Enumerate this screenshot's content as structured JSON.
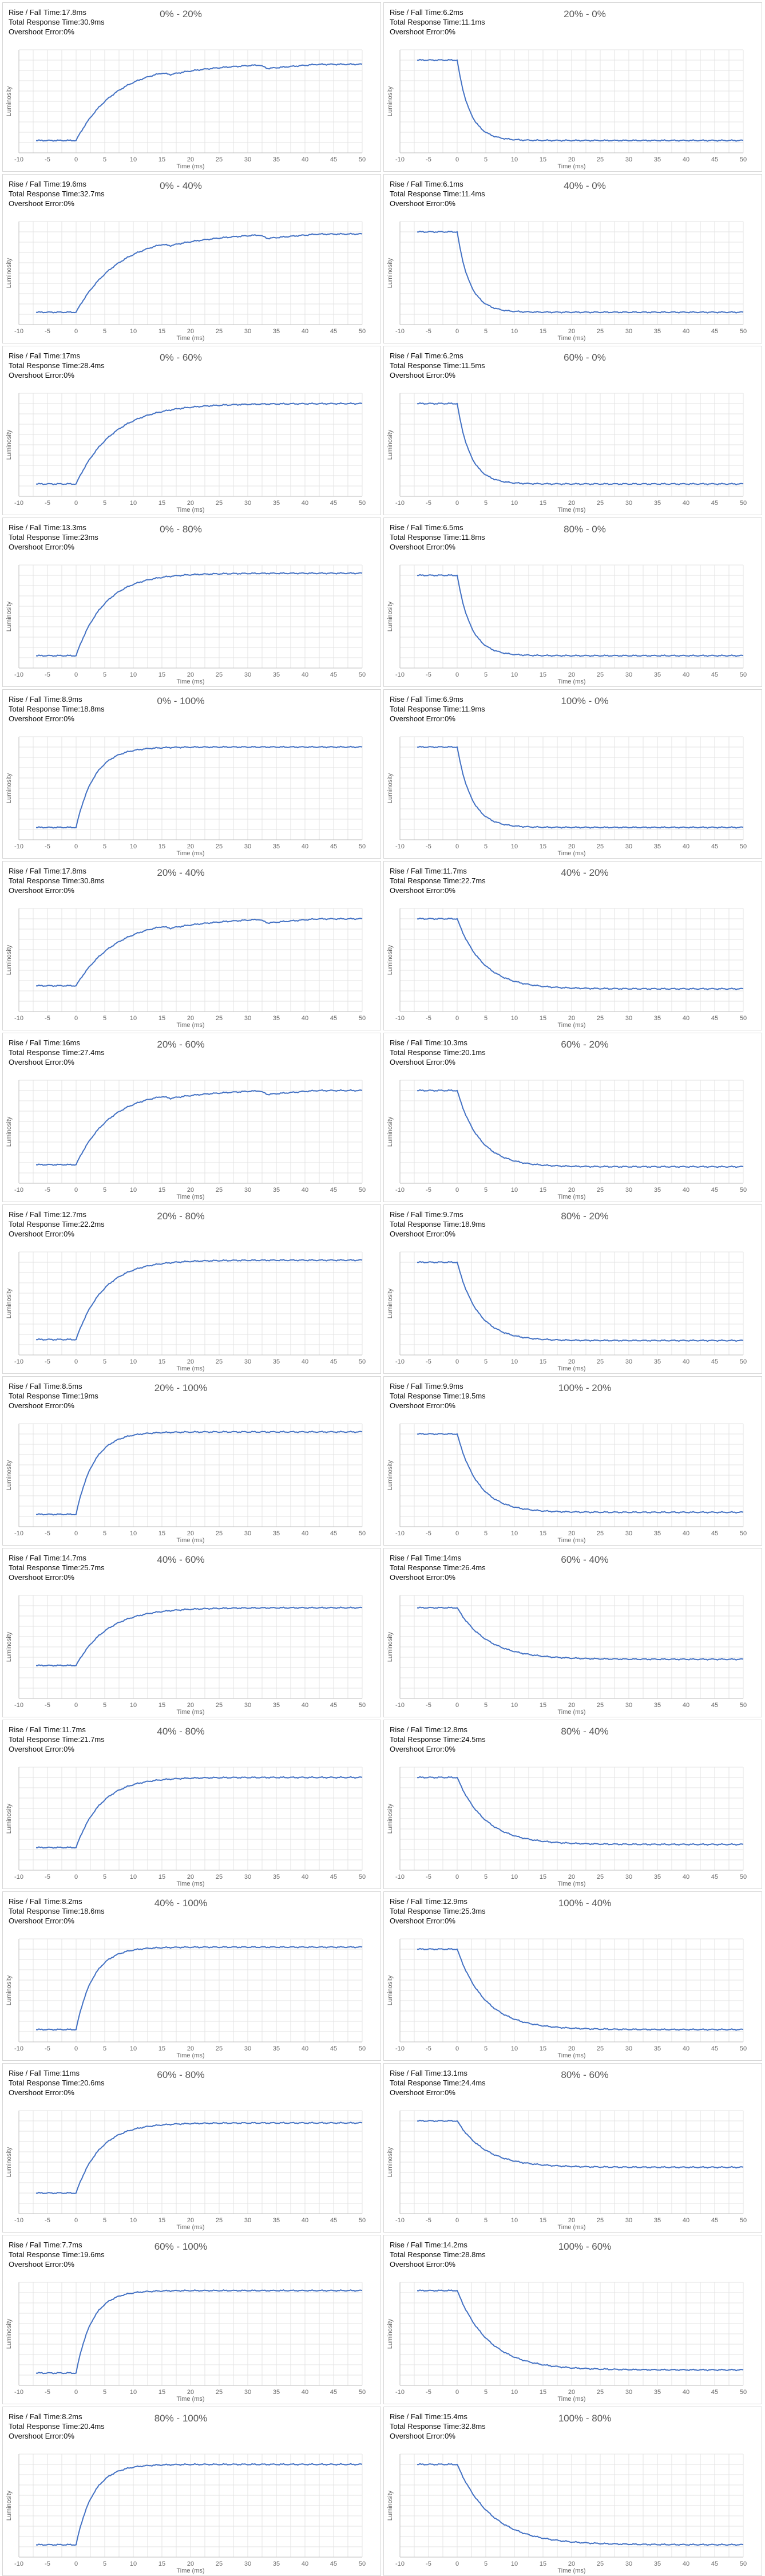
{
  "labels": {
    "rise": "Rise / Fall Time:",
    "total": "Total Response Time:",
    "overshoot": "Overshoot Error:",
    "xaxis": "Time (ms)",
    "yaxis": "Luminosity"
  },
  "colors": {
    "line": "#4472c4",
    "grid": "#e3e3e3",
    "axis": "#bdbdbd"
  },
  "chart_data": [
    {
      "type": "line",
      "title": "0% - 20%",
      "rise": "17.8ms",
      "total": "30.9ms",
      "overshoot": "0%",
      "dir": "rise",
      "lo": 0.12,
      "hi": 0.86,
      "tau": 7.0,
      "bump": true,
      "xlim": [
        -10,
        50
      ],
      "xticks": [
        -10,
        -5,
        0,
        5,
        10,
        15,
        20,
        25,
        30,
        35,
        40,
        45,
        50
      ]
    },
    {
      "type": "line",
      "title": "20% - 0%",
      "rise": "6.2ms",
      "total": "11.1ms",
      "overshoot": "0%",
      "dir": "fall",
      "lo": 0.12,
      "hi": 0.9,
      "tau": 2.2,
      "bump": false,
      "xlim": [
        -10,
        50
      ],
      "xticks": [
        -10,
        -5,
        0,
        5,
        10,
        15,
        20,
        25,
        30,
        35,
        40,
        45,
        50
      ]
    },
    {
      "type": "line",
      "title": "0% - 40%",
      "rise": "19.6ms",
      "total": "32.7ms",
      "overshoot": "0%",
      "dir": "rise",
      "lo": 0.12,
      "hi": 0.88,
      "tau": 7.5,
      "bump": true,
      "xlim": [
        -10,
        50
      ],
      "xticks": [
        -10,
        -5,
        0,
        5,
        10,
        15,
        20,
        25,
        30,
        35,
        40,
        45,
        50
      ]
    },
    {
      "type": "line",
      "title": "40% - 0%",
      "rise": "6.1ms",
      "total": "11.4ms",
      "overshoot": "0%",
      "dir": "fall",
      "lo": 0.12,
      "hi": 0.9,
      "tau": 2.2,
      "bump": false,
      "xlim": [
        -10,
        50
      ],
      "xticks": [
        -10,
        -5,
        0,
        5,
        10,
        15,
        20,
        25,
        30,
        35,
        40,
        45,
        50
      ]
    },
    {
      "type": "line",
      "title": "0% - 60%",
      "rise": "17ms",
      "total": "28.4ms",
      "overshoot": "0%",
      "dir": "rise",
      "lo": 0.12,
      "hi": 0.9,
      "tau": 6.5,
      "bump": false,
      "xlim": [
        -10,
        50
      ],
      "xticks": [
        -10,
        -5,
        0,
        5,
        10,
        15,
        20,
        25,
        30,
        35,
        40,
        45,
        50
      ]
    },
    {
      "type": "line",
      "title": "60% - 0%",
      "rise": "6.2ms",
      "total": "11.5ms",
      "overshoot": "0%",
      "dir": "fall",
      "lo": 0.12,
      "hi": 0.9,
      "tau": 2.3,
      "bump": false,
      "xlim": [
        -10,
        50
      ],
      "xticks": [
        -10,
        -5,
        0,
        5,
        10,
        15,
        20,
        25,
        30,
        35,
        40,
        45,
        50
      ]
    },
    {
      "type": "line",
      "title": "0% - 80%",
      "rise": "13.3ms",
      "total": "23ms",
      "overshoot": "0%",
      "dir": "rise",
      "lo": 0.12,
      "hi": 0.92,
      "tau": 5.0,
      "bump": false,
      "xlim": [
        -10,
        50
      ],
      "xticks": [
        -10,
        -5,
        0,
        5,
        10,
        15,
        20,
        25,
        30,
        35,
        40,
        45,
        50
      ]
    },
    {
      "type": "line",
      "title": "80% - 0%",
      "rise": "6.5ms",
      "total": "11.8ms",
      "overshoot": "0%",
      "dir": "fall",
      "lo": 0.12,
      "hi": 0.9,
      "tau": 2.4,
      "bump": false,
      "xlim": [
        -10,
        50
      ],
      "xticks": [
        -10,
        -5,
        0,
        5,
        10,
        15,
        20,
        25,
        30,
        35,
        40,
        45,
        50
      ]
    },
    {
      "type": "line",
      "title": "0% - 100%",
      "rise": "8.9ms",
      "total": "18.8ms",
      "overshoot": "0%",
      "dir": "rise",
      "lo": 0.12,
      "hi": 0.9,
      "tau": 3.2,
      "bump": false,
      "xlim": [
        -10,
        50
      ],
      "xticks": [
        -10,
        -5,
        0,
        5,
        10,
        15,
        20,
        25,
        30,
        35,
        40,
        45,
        50
      ]
    },
    {
      "type": "line",
      "title": "100% - 0%",
      "rise": "6.9ms",
      "total": "11.9ms",
      "overshoot": "0%",
      "dir": "fall",
      "lo": 0.12,
      "hi": 0.9,
      "tau": 2.5,
      "bump": false,
      "xlim": [
        -10,
        50
      ],
      "xticks": [
        -10,
        -5,
        0,
        5,
        10,
        15,
        20,
        25,
        30,
        35,
        40,
        45,
        50
      ]
    },
    {
      "type": "line",
      "title": "20% - 40%",
      "rise": "17.8ms",
      "total": "30.8ms",
      "overshoot": "0%",
      "dir": "rise",
      "lo": 0.25,
      "hi": 0.9,
      "tau": 7.0,
      "bump": true,
      "xlim": [
        -10,
        50
      ],
      "xticks": [
        -10,
        -5,
        0,
        5,
        10,
        15,
        20,
        25,
        30,
        35,
        40,
        45,
        50
      ]
    },
    {
      "type": "line",
      "title": "40% - 20%",
      "rise": "11.7ms",
      "total": "22.7ms",
      "overshoot": "0%",
      "dir": "fall",
      "lo": 0.22,
      "hi": 0.9,
      "tau": 4.5,
      "bump": false,
      "xlim": [
        -10,
        50
      ],
      "xticks": [
        -10,
        -5,
        0,
        5,
        10,
        15,
        20,
        25,
        30,
        35,
        40,
        45,
        50
      ]
    },
    {
      "type": "line",
      "title": "20% - 60%",
      "rise": "16ms",
      "total": "27.4ms",
      "overshoot": "0%",
      "dir": "rise",
      "lo": 0.18,
      "hi": 0.9,
      "tau": 6.0,
      "bump": true,
      "xlim": [
        -10,
        50
      ],
      "xticks": [
        -10,
        -5,
        0,
        5,
        10,
        15,
        20,
        25,
        30,
        35,
        40,
        45,
        50
      ]
    },
    {
      "type": "line",
      "title": "60% - 20%",
      "rise": "10.3ms",
      "total": "20.1ms",
      "overshoot": "0%",
      "dir": "fall",
      "lo": 0.16,
      "hi": 0.9,
      "tau": 3.9,
      "bump": false,
      "xlim": [
        -10,
        50
      ],
      "xticks": [
        -10,
        -5,
        0,
        5,
        10,
        15,
        20,
        25,
        30,
        35,
        40,
        45,
        50
      ]
    },
    {
      "type": "line",
      "title": "20% - 80%",
      "rise": "12.7ms",
      "total": "22.2ms",
      "overshoot": "0%",
      "dir": "rise",
      "lo": 0.15,
      "hi": 0.92,
      "tau": 4.8,
      "bump": false,
      "xlim": [
        -10,
        50
      ],
      "xticks": [
        -10,
        -5,
        0,
        5,
        10,
        15,
        20,
        25,
        30,
        35,
        40,
        45,
        50
      ]
    },
    {
      "type": "line",
      "title": "80% - 20%",
      "rise": "9.7ms",
      "total": "18.9ms",
      "overshoot": "0%",
      "dir": "fall",
      "lo": 0.14,
      "hi": 0.9,
      "tau": 3.6,
      "bump": false,
      "xlim": [
        -10,
        50
      ],
      "xticks": [
        -10,
        -5,
        0,
        5,
        10,
        15,
        20,
        25,
        30,
        35,
        40,
        45,
        50
      ]
    },
    {
      "type": "line",
      "title": "20% - 100%",
      "rise": "8.5ms",
      "total": "19ms",
      "overshoot": "0%",
      "dir": "rise",
      "lo": 0.12,
      "hi": 0.92,
      "tau": 3.1,
      "bump": false,
      "xlim": [
        -10,
        50
      ],
      "xticks": [
        -10,
        -5,
        0,
        5,
        10,
        15,
        20,
        25,
        30,
        35,
        40,
        45,
        50
      ]
    },
    {
      "type": "line",
      "title": "100% - 20%",
      "rise": "9.9ms",
      "total": "19.5ms",
      "overshoot": "0%",
      "dir": "fall",
      "lo": 0.14,
      "hi": 0.9,
      "tau": 3.7,
      "bump": false,
      "xlim": [
        -10,
        50
      ],
      "xticks": [
        -10,
        -5,
        0,
        5,
        10,
        15,
        20,
        25,
        30,
        35,
        40,
        45,
        50
      ]
    },
    {
      "type": "line",
      "title": "40% - 60%",
      "rise": "14.7ms",
      "total": "25.7ms",
      "overshoot": "0%",
      "dir": "rise",
      "lo": 0.32,
      "hi": 0.88,
      "tau": 5.5,
      "bump": false,
      "xlim": [
        -10,
        50
      ],
      "xticks": [
        -10,
        -5,
        0,
        5,
        10,
        15,
        20,
        25,
        30,
        35,
        40,
        45,
        50
      ]
    },
    {
      "type": "line",
      "title": "60% - 40%",
      "rise": "14ms",
      "total": "26.4ms",
      "overshoot": "0%",
      "dir": "fall",
      "lo": 0.38,
      "hi": 0.88,
      "tau": 5.3,
      "bump": false,
      "xlim": [
        -10,
        50
      ],
      "xticks": [
        -10,
        -5,
        0,
        5,
        10,
        15,
        20,
        25,
        30,
        35,
        40,
        45,
        50
      ]
    },
    {
      "type": "line",
      "title": "40% - 80%",
      "rise": "11.7ms",
      "total": "21.7ms",
      "overshoot": "0%",
      "dir": "rise",
      "lo": 0.22,
      "hi": 0.9,
      "tau": 4.4,
      "bump": false,
      "xlim": [
        -10,
        50
      ],
      "xticks": [
        -10,
        -5,
        0,
        5,
        10,
        15,
        20,
        25,
        30,
        35,
        40,
        45,
        50
      ]
    },
    {
      "type": "line",
      "title": "80% - 40%",
      "rise": "12.8ms",
      "total": "24.5ms",
      "overshoot": "0%",
      "dir": "fall",
      "lo": 0.25,
      "hi": 0.9,
      "tau": 4.9,
      "bump": false,
      "xlim": [
        -10,
        50
      ],
      "xticks": [
        -10,
        -5,
        0,
        5,
        10,
        15,
        20,
        25,
        30,
        35,
        40,
        45,
        50
      ]
    },
    {
      "type": "line",
      "title": "40% - 100%",
      "rise": "8.2ms",
      "total": "18.6ms",
      "overshoot": "0%",
      "dir": "rise",
      "lo": 0.12,
      "hi": 0.92,
      "tau": 3.0,
      "bump": false,
      "xlim": [
        -10,
        50
      ],
      "xticks": [
        -10,
        -5,
        0,
        5,
        10,
        15,
        20,
        25,
        30,
        35,
        40,
        45,
        50
      ]
    },
    {
      "type": "line",
      "title": "100% - 40%",
      "rise": "12.9ms",
      "total": "25.3ms",
      "overshoot": "0%",
      "dir": "fall",
      "lo": 0.12,
      "hi": 0.9,
      "tau": 4.9,
      "bump": false,
      "xlim": [
        -10,
        50
      ],
      "xticks": [
        -10,
        -5,
        0,
        5,
        10,
        15,
        20,
        25,
        30,
        35,
        40,
        45,
        50
      ]
    },
    {
      "type": "line",
      "title": "60% - 80%",
      "rise": "11ms",
      "total": "20.6ms",
      "overshoot": "0%",
      "dir": "rise",
      "lo": 0.2,
      "hi": 0.88,
      "tau": 4.2,
      "bump": false,
      "xlim": [
        -10,
        50
      ],
      "xticks": [
        -10,
        -5,
        0,
        5,
        10,
        15,
        20,
        25,
        30,
        35,
        40,
        45,
        50
      ]
    },
    {
      "type": "line",
      "title": "80% - 60%",
      "rise": "13.1ms",
      "total": "24.4ms",
      "overshoot": "0%",
      "dir": "fall",
      "lo": 0.45,
      "hi": 0.9,
      "tau": 5.0,
      "bump": false,
      "xlim": [
        -10,
        50
      ],
      "xticks": [
        -10,
        -5,
        0,
        5,
        10,
        15,
        20,
        25,
        30,
        35,
        40,
        45,
        50
      ]
    },
    {
      "type": "line",
      "title": "60% - 100%",
      "rise": "7.7ms",
      "total": "19.6ms",
      "overshoot": "0%",
      "dir": "rise",
      "lo": 0.12,
      "hi": 0.92,
      "tau": 2.8,
      "bump": false,
      "xlim": [
        -10,
        50
      ],
      "xticks": [
        -10,
        -5,
        0,
        5,
        10,
        15,
        20,
        25,
        30,
        35,
        40,
        45,
        50
      ]
    },
    {
      "type": "line",
      "title": "100% - 60%",
      "rise": "14.2ms",
      "total": "28.8ms",
      "overshoot": "0%",
      "dir": "fall",
      "lo": 0.15,
      "hi": 0.92,
      "tau": 5.5,
      "bump": false,
      "xlim": [
        -10,
        50
      ],
      "xticks": [
        -10,
        -5,
        0,
        5,
        10,
        15,
        20,
        25,
        30,
        35,
        40,
        45,
        50
      ]
    },
    {
      "type": "line",
      "title": "80% - 100%",
      "rise": "8.2ms",
      "total": "20.4ms",
      "overshoot": "0%",
      "dir": "rise",
      "lo": 0.12,
      "hi": 0.9,
      "tau": 3.0,
      "bump": false,
      "xlim": [
        -10,
        50
      ],
      "xticks": [
        -10,
        -5,
        0,
        5,
        10,
        15,
        20,
        25,
        30,
        35,
        40,
        45,
        50
      ]
    },
    {
      "type": "line",
      "title": "100% - 80%",
      "rise": "15.4ms",
      "total": "32.8ms",
      "overshoot": "0%",
      "dir": "fall",
      "lo": 0.12,
      "hi": 0.9,
      "tau": 6.0,
      "bump": false,
      "xlim": [
        -10,
        50
      ],
      "xticks": [
        -10,
        -5,
        0,
        5,
        10,
        15,
        20,
        25,
        30,
        35,
        40,
        45,
        50
      ]
    }
  ]
}
